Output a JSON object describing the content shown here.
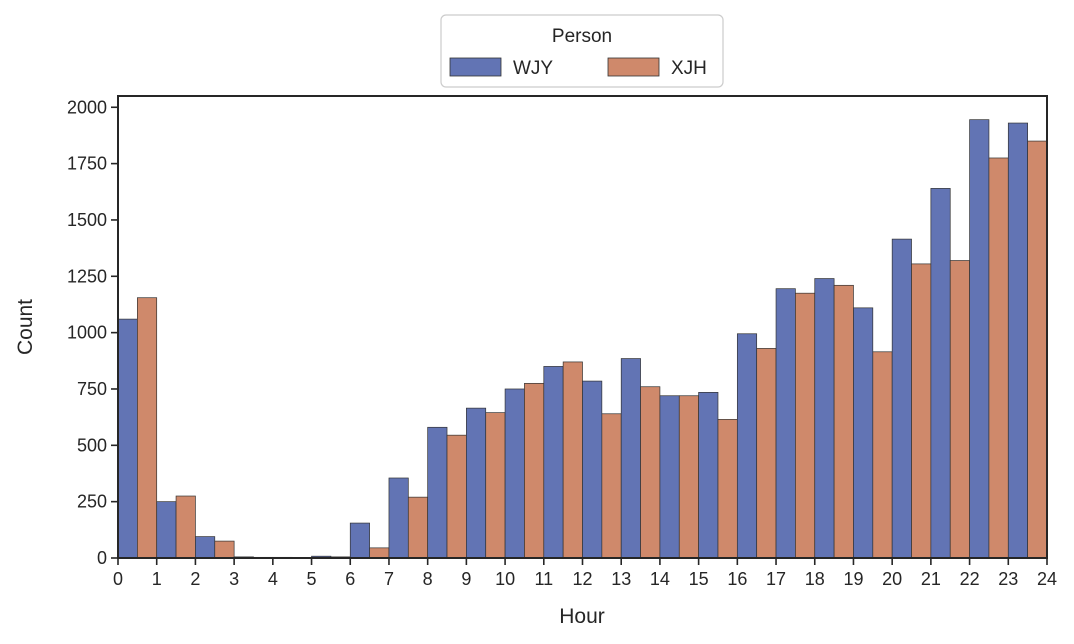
{
  "chart_data": {
    "type": "bar",
    "x": [
      0,
      1,
      2,
      3,
      4,
      5,
      6,
      7,
      8,
      9,
      10,
      11,
      12,
      13,
      14,
      15,
      16,
      17,
      18,
      19,
      20,
      21,
      22,
      23
    ],
    "xlabel": "Hour",
    "ylabel": "Count",
    "xlim": [
      0,
      24
    ],
    "ylim": [
      0,
      2050
    ],
    "xticks": [
      "0",
      "1",
      "2",
      "3",
      "4",
      "5",
      "6",
      "7",
      "8",
      "9",
      "10",
      "11",
      "12",
      "13",
      "14",
      "15",
      "16",
      "17",
      "18",
      "19",
      "20",
      "21",
      "22",
      "23",
      "24"
    ],
    "yticks": [
      "0",
      "250",
      "500",
      "750",
      "1000",
      "1250",
      "1500",
      "1750",
      "2000"
    ],
    "grid": false,
    "legend": {
      "title": "Person",
      "placement": "top-center"
    },
    "series": [
      {
        "name": "WJY",
        "color": "#6274b4",
        "values": [
          1060,
          250,
          95,
          5,
          3,
          8,
          155,
          355,
          580,
          665,
          750,
          850,
          785,
          885,
          720,
          735,
          995,
          1195,
          1240,
          1110,
          1415,
          1640,
          1945,
          1930
        ]
      },
      {
        "name": "XJH",
        "color": "#cf896b",
        "values": [
          1155,
          275,
          75,
          3,
          2,
          5,
          45,
          270,
          545,
          645,
          775,
          870,
          640,
          760,
          720,
          615,
          930,
          1175,
          1210,
          915,
          1305,
          1320,
          1775,
          1850
        ]
      }
    ]
  }
}
